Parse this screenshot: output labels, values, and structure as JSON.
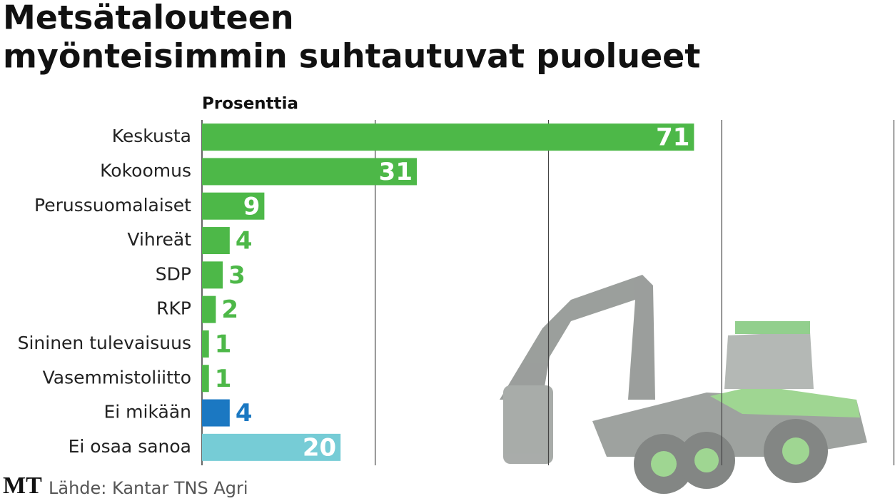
{
  "chart_data": {
    "type": "hbar",
    "title": [
      "Metsätalouteen",
      "myönteisimmin suhtautuvat puolueet"
    ],
    "axis_label": "Prosenttia",
    "categories": [
      "Keskusta",
      "Kokoomus",
      "Perussuomalaiset",
      "Vihreät",
      "SDP",
      "RKP",
      "Sininen tulevaisuus",
      "Vasemmistoliitto",
      "Ei mikään",
      "Ei osaa sanoa"
    ],
    "values": [
      71,
      31,
      9,
      4,
      3,
      2,
      1,
      1,
      4,
      20
    ],
    "colors": [
      "#4db848",
      "#4db848",
      "#4db848",
      "#4db848",
      "#4db848",
      "#4db848",
      "#4db848",
      "#4db848",
      "#1b78c2",
      "#76ccd6"
    ],
    "xlim": [
      0,
      100
    ],
    "grid_values": [
      25,
      50,
      75,
      100
    ],
    "logo": "MT",
    "source": "Lähde: Kantar TNS Agri"
  }
}
